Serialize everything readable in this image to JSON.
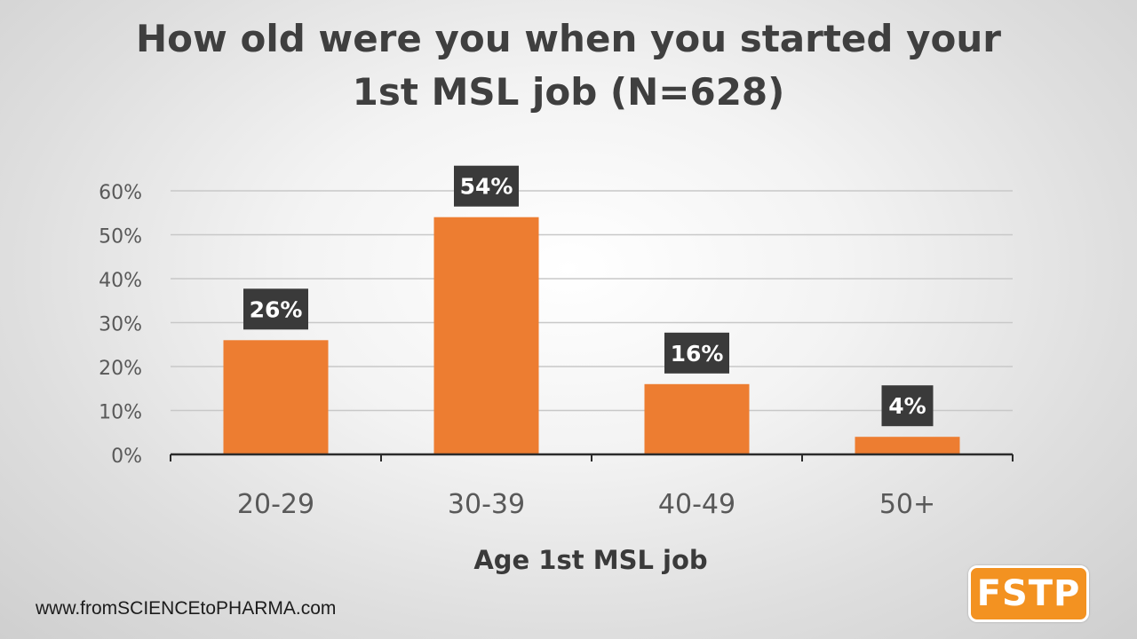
{
  "title": {
    "line1": "How old were you when you started your",
    "line2": "1st MSL job (N=628)"
  },
  "footer": {
    "url": "www.fromSCIENCEtoPHARMA.com",
    "logo_text": "FSTP"
  },
  "colors": {
    "bar": "#ed7d31",
    "label_box": "#3a3a3a",
    "label_text": "#ffffff",
    "axis_text": "#595959",
    "gridline": "#c8c8c8",
    "logo": "#f39221"
  },
  "chart_data": {
    "type": "bar",
    "categories": [
      "20-29",
      "30-39",
      "40-49",
      "50+"
    ],
    "values": [
      26,
      54,
      16,
      4
    ],
    "data_labels": [
      "26%",
      "54%",
      "16%",
      "4%"
    ],
    "xlabel": "Age 1st MSL job",
    "ylabel": "",
    "ylim": [
      0,
      60
    ],
    "yticks": [
      0,
      10,
      20,
      30,
      40,
      50,
      60
    ],
    "ytick_labels": [
      "0%",
      "10%",
      "20%",
      "30%",
      "40%",
      "50%",
      "60%"
    ],
    "grid": true,
    "legend": "none"
  }
}
